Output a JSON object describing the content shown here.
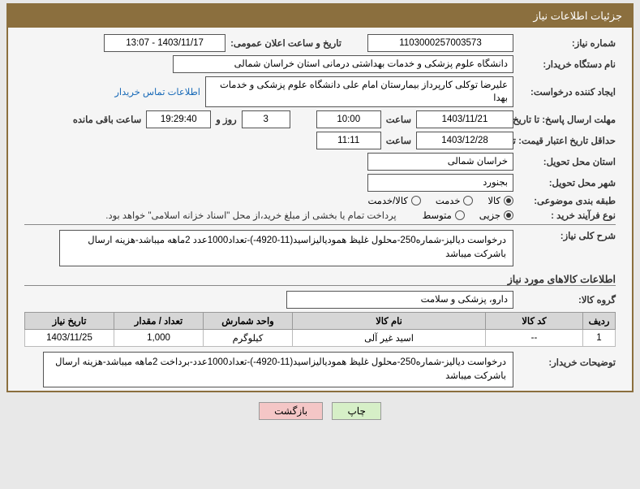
{
  "header": {
    "title": "جزئیات اطلاعات نیاز"
  },
  "labels": {
    "need_no": "شماره نیاز:",
    "announce_datetime": "تاریخ و ساعت اعلان عمومی:",
    "buyer_org": "نام دستگاه خریدار:",
    "requester": "ایجاد کننده درخواست:",
    "contact_link": "اطلاعات تماس خریدار",
    "response_deadline": "مهلت ارسال پاسخ: تا تاریخ:",
    "time": "ساعت",
    "days_and": "روز و",
    "time_remaining": "ساعت باقی مانده",
    "min_validity": "حداقل تاریخ اعتبار قیمت: تا تاریخ:",
    "delivery_province": "استان محل تحویل:",
    "delivery_city": "شهر محل تحویل:",
    "category": "طبقه بندی موضوعی:",
    "purchase_type": "نوع فرآیند خرید :",
    "purchase_note": "پرداخت تمام یا بخشی از مبلغ خرید،از محل \"اسناد خزانه اسلامی\" خواهد بود.",
    "general_desc": "شرح کلی نیاز:",
    "section_goods": "اطلاعات کالاهای مورد نیاز",
    "goods_group": "گروه کالا:",
    "buyer_notes": "توضیحات خریدار:"
  },
  "fields": {
    "need_no": "1103000257003573",
    "announce_datetime": "1403/11/17 - 13:07",
    "buyer_org": "دانشگاه علوم پزشکی و خدمات بهداشتی درمانی استان خراسان شمالی",
    "requester": "علیرضا توکلی کارپرداز بیمارستان امام علی دانشگاه علوم پزشکی و خدمات بهدا",
    "resp_date": "1403/11/21",
    "resp_time": "10:00",
    "days_left": "3",
    "time_left": "19:29:40",
    "valid_date": "1403/12/28",
    "valid_time": "11:11",
    "province": "خراسان شمالی",
    "city": "بجنورد",
    "general_desc": "درخواست دیالیز-شماره250-محلول غلیظ همودیالیزاسید(11-4920-)-تعداد1000عدد 2ماهه میباشد-هزینه ارسال باشرکت میباشد",
    "goods_group": "دارو، پزشکی و سلامت",
    "buyer_notes": "درخواست دیالیز-شماره250-محلول غلیظ همودیالیزاسید(11-4920-)-تعداد1000عدد-برداخت 2ماهه میباشد-هزینه ارسال باشرکت میباشد"
  },
  "radios": {
    "category": {
      "options": [
        "کالا",
        "خدمت",
        "کالا/خدمت"
      ],
      "selected": 0
    },
    "purchase_type": {
      "options": [
        "جزیی",
        "متوسط"
      ],
      "selected": 0
    }
  },
  "table": {
    "headers": [
      "ردیف",
      "کد کالا",
      "نام کالا",
      "واحد شمارش",
      "تعداد / مقدار",
      "تاریخ نیاز"
    ],
    "rows": [
      [
        "1",
        "--",
        "اسید غیر آلی",
        "کیلوگرم",
        "1,000",
        "1403/11/25"
      ]
    ],
    "col_widths": [
      "40px",
      "120px",
      "auto",
      "110px",
      "110px",
      "110px"
    ]
  },
  "buttons": {
    "print": "چاپ",
    "back": "بازگشت"
  }
}
